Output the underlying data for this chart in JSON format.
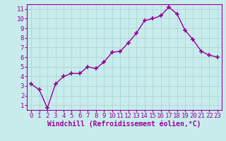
{
  "x": [
    0,
    1,
    2,
    3,
    4,
    5,
    6,
    7,
    8,
    9,
    10,
    11,
    12,
    13,
    14,
    15,
    16,
    17,
    18,
    19,
    20,
    21,
    22,
    23
  ],
  "y": [
    3.2,
    2.6,
    0.7,
    3.2,
    4.0,
    4.3,
    4.3,
    5.0,
    4.8,
    5.5,
    6.5,
    6.6,
    7.5,
    8.5,
    9.8,
    10.0,
    10.3,
    11.2,
    10.5,
    8.8,
    7.8,
    6.6,
    6.2,
    6.0
  ],
  "line_color": "#990099",
  "marker": "+",
  "markersize": 4,
  "linewidth": 1.0,
  "xlabel": "Windchill (Refroidissement éolien,°C)",
  "ylabel": "",
  "title": "",
  "xlim": [
    -0.5,
    23.5
  ],
  "ylim": [
    0.5,
    11.5
  ],
  "yticks": [
    1,
    2,
    3,
    4,
    5,
    6,
    7,
    8,
    9,
    10,
    11
  ],
  "xticks": [
    0,
    1,
    2,
    3,
    4,
    5,
    6,
    7,
    8,
    9,
    10,
    11,
    12,
    13,
    14,
    15,
    16,
    17,
    18,
    19,
    20,
    21,
    22,
    23
  ],
  "background_color": "#c8ecec",
  "grid_color": "#b0d8d8",
  "tick_color": "#990099",
  "label_color": "#990099",
  "xlabel_fontsize": 7,
  "tick_fontsize": 6.5,
  "xlabel_fontweight": "bold",
  "font_family": "monospace",
  "spine_color": "#990099"
}
